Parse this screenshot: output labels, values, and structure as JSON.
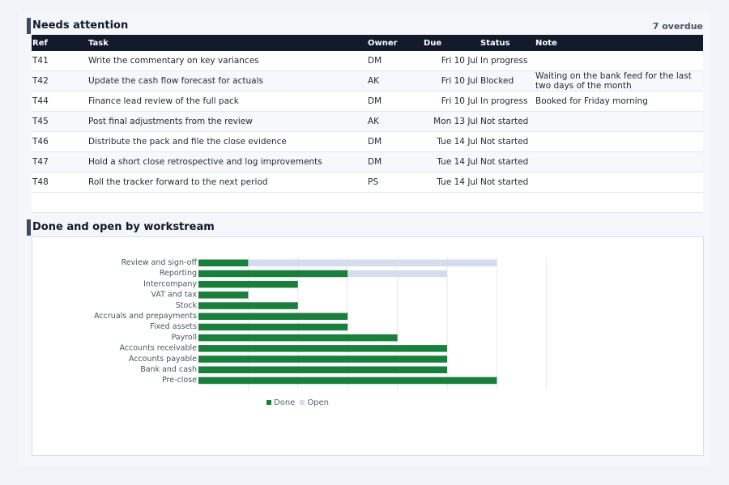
{
  "attention": {
    "title": "Needs attention",
    "overdue": "7 overdue",
    "columns": {
      "ref": "Ref",
      "task": "Task",
      "owner": "Owner",
      "due": "Due",
      "status": "Status",
      "note": "Note"
    },
    "rows": [
      {
        "ref": "T41",
        "task": "Write the commentary on key variances",
        "owner": "DM",
        "due": "Fri 10 Jul",
        "status": "In progress",
        "note": ""
      },
      {
        "ref": "T42",
        "task": "Update the cash flow forecast for actuals",
        "owner": "AK",
        "due": "Fri 10 Jul",
        "status": "Blocked",
        "note": "Waiting on the bank feed for the last two days of the month"
      },
      {
        "ref": "T44",
        "task": "Finance lead review of the full pack",
        "owner": "DM",
        "due": "Fri 10 Jul",
        "status": "In progress",
        "note": "Booked for Friday morning"
      },
      {
        "ref": "T45",
        "task": "Post final adjustments from the review",
        "owner": "AK",
        "due": "Mon 13 Jul",
        "status": "Not started",
        "note": ""
      },
      {
        "ref": "T46",
        "task": "Distribute the pack and file the close evidence",
        "owner": "DM",
        "due": "Tue 14 Jul",
        "status": "Not started",
        "note": ""
      },
      {
        "ref": "T47",
        "task": "Hold a short close retrospective and log improvements",
        "owner": "DM",
        "due": "Tue 14 Jul",
        "status": "Not started",
        "note": ""
      },
      {
        "ref": "T48",
        "task": "Roll the tracker forward to the next period",
        "owner": "PS",
        "due": "Tue 14 Jul",
        "status": "Not started",
        "note": ""
      }
    ]
  },
  "workstream": {
    "title": "Done and open by workstream"
  },
  "chart_data": {
    "type": "bar",
    "orientation": "horizontal",
    "stacked": true,
    "categories": [
      "Review and sign-off",
      "Reporting",
      "Intercompany",
      "VAT and tax",
      "Stock",
      "Accruals and prepayments",
      "Fixed assets",
      "Payroll",
      "Accounts receivable",
      "Accounts payable",
      "Bank and cash",
      "Pre-close"
    ],
    "series": [
      {
        "name": "Done",
        "color": "#1a7f3c",
        "values": [
          1,
          3,
          2,
          1,
          2,
          3,
          3,
          4,
          5,
          5,
          5,
          6
        ]
      },
      {
        "name": "Open",
        "color": "#d5dceb",
        "values": [
          5,
          2,
          0,
          0,
          0,
          0,
          0,
          0,
          0,
          0,
          0,
          0
        ]
      }
    ],
    "xlim": [
      0,
      7
    ],
    "grid": true,
    "legend": "bottom"
  }
}
